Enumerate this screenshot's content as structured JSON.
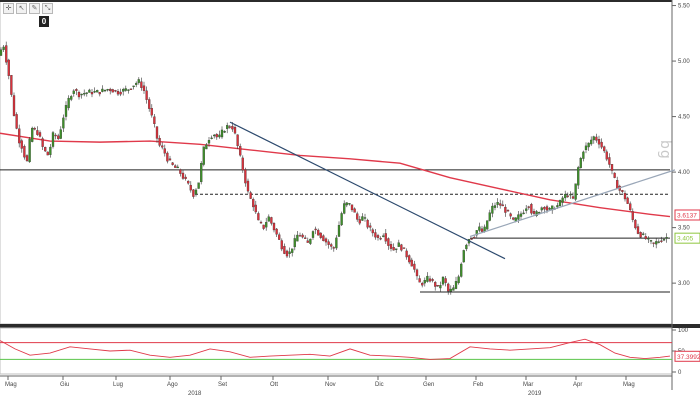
{
  "toolbar": {
    "icons": [
      "crosshair-icon",
      "cursor-icon",
      "pencil-icon",
      "zoom-icon"
    ],
    "glyphs": [
      "✛",
      "↖",
      "✎",
      "⤡"
    ],
    "badge": "0"
  },
  "watermark": "bg",
  "chart_data": [
    {
      "type": "candlestick",
      "title": "",
      "xlabel": "",
      "ylabel": "",
      "ylim": [
        2.65,
        5.55
      ],
      "y_ticks": [
        "5.50",
        "5.00",
        "4.50",
        "4.00",
        "3.50",
        "3.00"
      ],
      "x_ticks": [
        "Mag",
        "Giu",
        "Lug",
        "Ago",
        "Set",
        "Ott",
        "Nov",
        "Dic",
        "Gen",
        "Feb",
        "Mar",
        "Apr",
        "Mag"
      ],
      "year_labels": [
        "2018",
        "2019"
      ],
      "price_path": [
        [
          0,
          5.05
        ],
        [
          5,
          5.15
        ],
        [
          10,
          4.9
        ],
        [
          15,
          4.55
        ],
        [
          20,
          4.3
        ],
        [
          25,
          4.2
        ],
        [
          28,
          4.05
        ],
        [
          33,
          4.4
        ],
        [
          40,
          4.35
        ],
        [
          45,
          4.2
        ],
        [
          50,
          4.15
        ],
        [
          55,
          4.35
        ],
        [
          60,
          4.3
        ],
        [
          65,
          4.5
        ],
        [
          70,
          4.65
        ],
        [
          75,
          4.75
        ],
        [
          80,
          4.7
        ],
        [
          90,
          4.72
        ],
        [
          100,
          4.72
        ],
        [
          110,
          4.75
        ],
        [
          120,
          4.72
        ],
        [
          130,
          4.75
        ],
        [
          140,
          4.82
        ],
        [
          145,
          4.75
        ],
        [
          150,
          4.6
        ],
        [
          155,
          4.45
        ],
        [
          160,
          4.25
        ],
        [
          165,
          4.2
        ],
        [
          170,
          4.1
        ],
        [
          175,
          4.05
        ],
        [
          180,
          4.02
        ],
        [
          185,
          3.95
        ],
        [
          190,
          3.88
        ],
        [
          195,
          3.8
        ],
        [
          200,
          3.9
        ],
        [
          205,
          4.2
        ],
        [
          210,
          4.3
        ],
        [
          215,
          4.35
        ],
        [
          220,
          4.3
        ],
        [
          225,
          4.38
        ],
        [
          230,
          4.42
        ],
        [
          235,
          4.4
        ],
        [
          240,
          4.2
        ],
        [
          245,
          4.0
        ],
        [
          250,
          3.8
        ],
        [
          255,
          3.7
        ],
        [
          260,
          3.55
        ],
        [
          265,
          3.5
        ],
        [
          270,
          3.6
        ],
        [
          275,
          3.5
        ],
        [
          280,
          3.4
        ],
        [
          285,
          3.3
        ],
        [
          290,
          3.25
        ],
        [
          295,
          3.35
        ],
        [
          300,
          3.45
        ],
        [
          305,
          3.4
        ],
        [
          310,
          3.35
        ],
        [
          315,
          3.5
        ],
        [
          320,
          3.45
        ],
        [
          325,
          3.4
        ],
        [
          330,
          3.35
        ],
        [
          335,
          3.3
        ],
        [
          340,
          3.5
        ],
        [
          345,
          3.7
        ],
        [
          350,
          3.72
        ],
        [
          355,
          3.65
        ],
        [
          360,
          3.55
        ],
        [
          365,
          3.6
        ],
        [
          370,
          3.5
        ],
        [
          375,
          3.45
        ],
        [
          380,
          3.4
        ],
        [
          385,
          3.45
        ],
        [
          390,
          3.35
        ],
        [
          395,
          3.3
        ],
        [
          400,
          3.35
        ],
        [
          405,
          3.3
        ],
        [
          410,
          3.22
        ],
        [
          415,
          3.15
        ],
        [
          420,
          3.0
        ],
        [
          425,
          3.0
        ],
        [
          430,
          3.05
        ],
        [
          435,
          3.0
        ],
        [
          440,
          2.95
        ],
        [
          445,
          3.05
        ],
        [
          450,
          2.92
        ],
        [
          455,
          2.95
        ],
        [
          460,
          3.05
        ],
        [
          465,
          3.3
        ],
        [
          470,
          3.4
        ],
        [
          475,
          3.42
        ],
        [
          480,
          3.5
        ],
        [
          485,
          3.45
        ],
        [
          490,
          3.6
        ],
        [
          495,
          3.7
        ],
        [
          500,
          3.72
        ],
        [
          505,
          3.68
        ],
        [
          510,
          3.62
        ],
        [
          515,
          3.55
        ],
        [
          520,
          3.6
        ],
        [
          525,
          3.65
        ],
        [
          530,
          3.72
        ],
        [
          535,
          3.6
        ],
        [
          540,
          3.65
        ],
        [
          545,
          3.7
        ],
        [
          550,
          3.65
        ],
        [
          555,
          3.68
        ],
        [
          560,
          3.7
        ],
        [
          565,
          3.78
        ],
        [
          570,
          3.8
        ],
        [
          575,
          3.75
        ],
        [
          580,
          4.05
        ],
        [
          585,
          4.2
        ],
        [
          590,
          4.25
        ],
        [
          595,
          4.32
        ],
        [
          600,
          4.28
        ],
        [
          605,
          4.2
        ],
        [
          610,
          4.1
        ],
        [
          615,
          3.95
        ],
        [
          620,
          3.85
        ],
        [
          625,
          3.8
        ],
        [
          630,
          3.7
        ],
        [
          635,
          3.55
        ],
        [
          640,
          3.45
        ],
        [
          645,
          3.42
        ],
        [
          650,
          3.38
        ],
        [
          655,
          3.35
        ],
        [
          660,
          3.38
        ],
        [
          665,
          3.4
        ],
        [
          670,
          3.42
        ]
      ],
      "moving_average": [
        [
          0,
          4.35
        ],
        [
          50,
          4.28
        ],
        [
          100,
          4.27
        ],
        [
          150,
          4.28
        ],
        [
          200,
          4.25
        ],
        [
          250,
          4.2
        ],
        [
          300,
          4.15
        ],
        [
          350,
          4.12
        ],
        [
          400,
          4.08
        ],
        [
          450,
          3.95
        ],
        [
          500,
          3.85
        ],
        [
          550,
          3.75
        ],
        [
          600,
          3.68
        ],
        [
          650,
          3.62
        ],
        [
          670,
          3.6
        ]
      ],
      "horizontal_levels": [
        {
          "kind": "solid",
          "value": 4.02,
          "from": 0,
          "to": 670
        },
        {
          "kind": "dashed",
          "value": 3.8,
          "from": 195,
          "to": 670
        },
        {
          "kind": "solid",
          "value": 3.405,
          "from": 470,
          "to": 670
        },
        {
          "kind": "solid",
          "value": 2.92,
          "from": 420,
          "to": 670
        }
      ],
      "trendlines": [
        {
          "name": "descending",
          "from": [
            230,
            4.45
          ],
          "to": [
            505,
            3.22
          ],
          "color": "#2d4a6e"
        },
        {
          "name": "ascending",
          "from": [
            470,
            3.42
          ],
          "to": [
            675,
            4.02
          ],
          "color": "#9aa7b8"
        }
      ],
      "price_label": {
        "text": "3.405",
        "value": 3.405,
        "color": "#8ec63f"
      },
      "ma_label": {
        "text": "3.6137",
        "value": 3.6137,
        "color": "#e0394a"
      },
      "colors": {
        "up": "#3e8e2a",
        "down": "#d8323c",
        "ma": "#e0394a",
        "trend": "#2d4a6e"
      }
    },
    {
      "type": "line",
      "title": "",
      "ylim": [
        0,
        100
      ],
      "y_ticks": [
        "100",
        "50",
        "0"
      ],
      "levels": [
        {
          "value": 70,
          "color": "#e0394a"
        },
        {
          "value": 30,
          "color": "#5ac54a"
        }
      ],
      "series": [
        {
          "values": [
            [
              0,
              75
            ],
            [
              15,
              55
            ],
            [
              30,
              40
            ],
            [
              50,
              45
            ],
            [
              70,
              60
            ],
            [
              90,
              55
            ],
            [
              110,
              50
            ],
            [
              130,
              52
            ],
            [
              150,
              40
            ],
            [
              170,
              35
            ],
            [
              190,
              40
            ],
            [
              210,
              55
            ],
            [
              230,
              48
            ],
            [
              250,
              35
            ],
            [
              270,
              38
            ],
            [
              290,
              40
            ],
            [
              310,
              42
            ],
            [
              330,
              38
            ],
            [
              350,
              55
            ],
            [
              370,
              40
            ],
            [
              390,
              38
            ],
            [
              410,
              35
            ],
            [
              430,
              30
            ],
            [
              450,
              32
            ],
            [
              470,
              60
            ],
            [
              490,
              55
            ],
            [
              510,
              52
            ],
            [
              530,
              55
            ],
            [
              550,
              58
            ],
            [
              570,
              70
            ],
            [
              585,
              78
            ],
            [
              600,
              65
            ],
            [
              615,
              45
            ],
            [
              630,
              35
            ],
            [
              645,
              32
            ],
            [
              660,
              35
            ],
            [
              670,
              38
            ]
          ],
          "color": "#e0394a"
        }
      ],
      "last_label": {
        "text": "37.3992",
        "value": 37.3992,
        "color": "#e0394a"
      }
    }
  ]
}
